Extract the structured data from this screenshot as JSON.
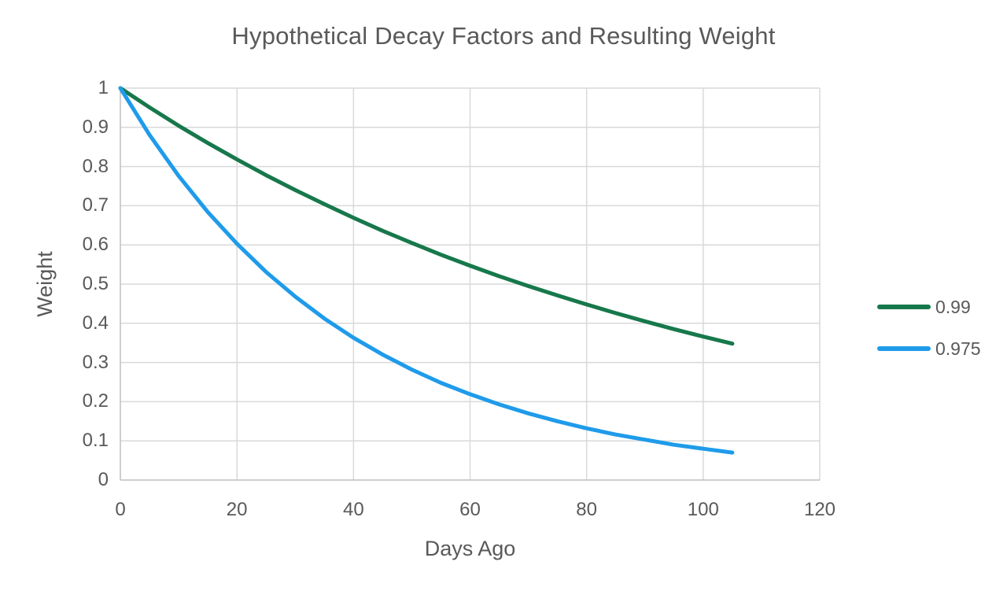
{
  "chart_data": {
    "type": "line",
    "title": "Hypothetical Decay Factors and Resulting Weight",
    "xlabel": "Days Ago",
    "ylabel": "Weight",
    "xlim": [
      0,
      120
    ],
    "ylim": [
      0,
      1
    ],
    "xticks": [
      0,
      20,
      40,
      60,
      80,
      100,
      120
    ],
    "yticks": [
      0,
      0.1,
      0.2,
      0.3,
      0.4,
      0.5,
      0.6,
      0.7,
      0.8,
      0.9,
      1
    ],
    "grid": true,
    "legend_position": "right",
    "x": [
      0,
      5,
      10,
      15,
      20,
      25,
      30,
      35,
      40,
      45,
      50,
      55,
      60,
      65,
      70,
      75,
      80,
      85,
      90,
      95,
      100,
      105
    ],
    "series": [
      {
        "name": "0.99",
        "color": "#17784B",
        "values": [
          1.0,
          0.951,
          0.904,
          0.86,
          0.818,
          0.778,
          0.74,
          0.704,
          0.669,
          0.636,
          0.605,
          0.575,
          0.547,
          0.52,
          0.495,
          0.471,
          0.448,
          0.426,
          0.405,
          0.385,
          0.366,
          0.348
        ]
      },
      {
        "name": "0.975",
        "color": "#1F9BEA",
        "values": [
          1.0,
          0.881,
          0.776,
          0.684,
          0.603,
          0.531,
          0.468,
          0.412,
          0.363,
          0.32,
          0.282,
          0.248,
          0.219,
          0.193,
          0.17,
          0.15,
          0.132,
          0.116,
          0.103,
          0.09,
          0.08,
          0.07
        ]
      }
    ],
    "colors": {
      "gridline": "#D9D9D9",
      "axis_line": "#BFBFBF",
      "text": "#595959",
      "background": "#FFFFFF"
    }
  }
}
